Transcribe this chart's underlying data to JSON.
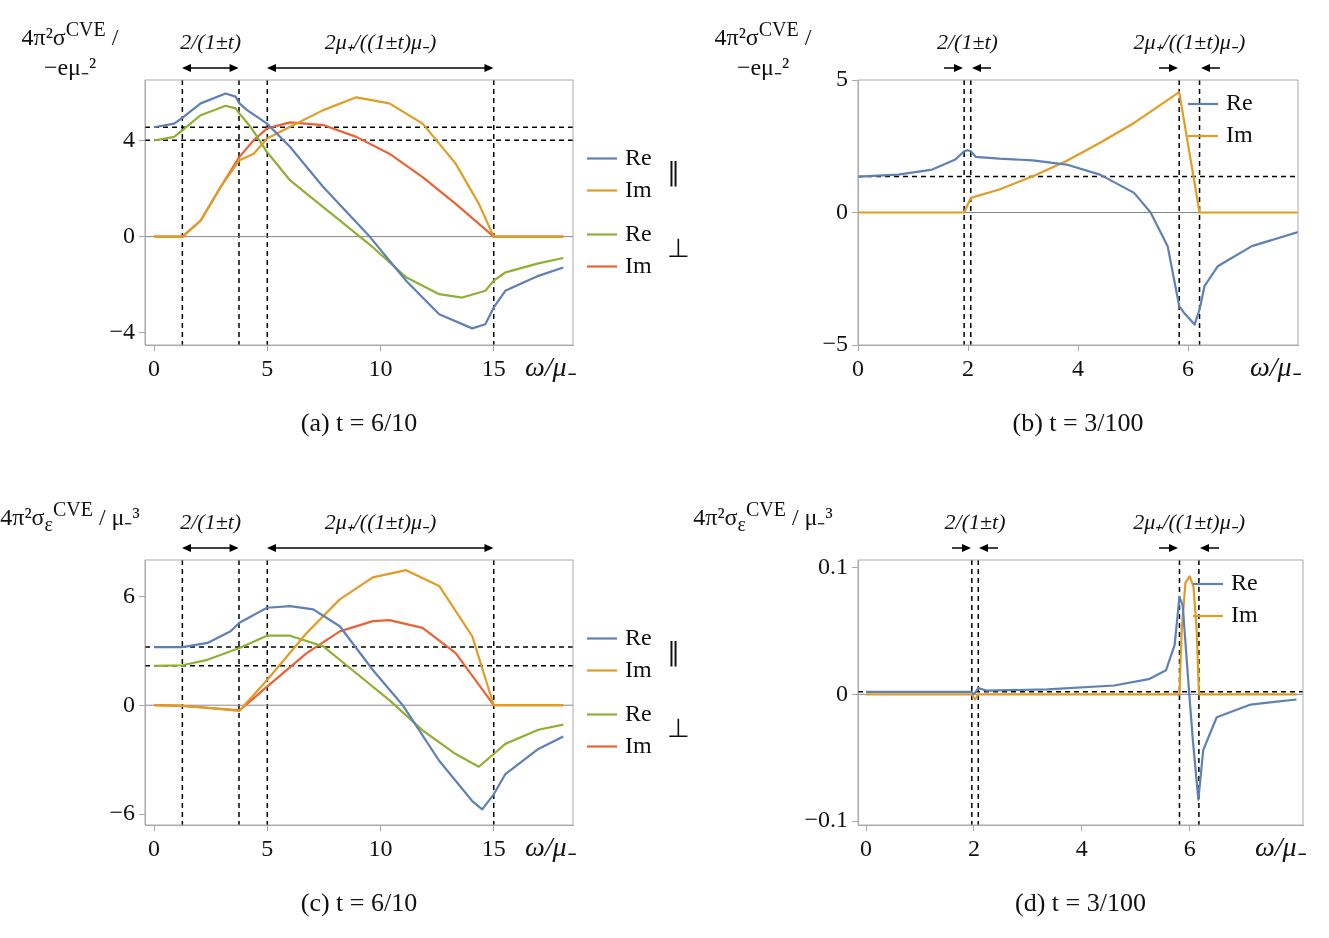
{
  "chart_data": [
    {
      "type": "line",
      "title": "(a) t = 6/10",
      "xlabel": "ω/μ₋",
      "ylabel": "4π²σ$^{CVE}$ / −eμ₋²",
      "legend": "right",
      "marker": "none",
      "xlim": [
        -0.4,
        18.5
      ],
      "ylim": [
        -4.5,
        6.5
      ],
      "xticks": [
        0,
        5,
        10,
        15
      ],
      "yticks": [
        -4,
        0,
        4
      ],
      "ref_lines": [
        {
          "axis": "x",
          "value": 1.25,
          "line_style": "dashed",
          "color": "#000000"
        },
        {
          "axis": "x",
          "value": 3.75,
          "line_style": "dashed",
          "color": "#000000"
        },
        {
          "axis": "x",
          "value": 5,
          "line_style": "dashed",
          "color": "#000000"
        },
        {
          "axis": "x",
          "value": 15,
          "line_style": "dashed",
          "color": "#000000"
        },
        {
          "axis": "y",
          "value": 4.54,
          "line_style": "dashed",
          "color": "#000000"
        },
        {
          "axis": "y",
          "value": 4,
          "line_style": "dashed",
          "color": "#000000"
        },
        {
          "axis": "y",
          "value": 0,
          "line_style": "solid",
          "color": "#888888"
        }
      ],
      "annotations": [
        "2/(1±t)",
        "2μ₊/((1±t)μ₋)",
        "∥",
        "⊥"
      ],
      "series": [
        {
          "name": "Re",
          "color": "#5e81b5",
          "x": [
            0,
            0.89,
            1.26,
            2.06,
            3.16,
            3.6,
            3.77,
            4.11,
            4.99,
            6.01,
            7.47,
            9.52,
            11.13,
            12.59,
            14.05,
            14.63,
            15,
            15.51,
            16.97,
            18.07
          ],
          "values": [
            4.54,
            4.69,
            4.94,
            5.53,
            5.94,
            5.81,
            5.53,
            5.25,
            4.69,
            3.72,
            2.06,
            0,
            -1.83,
            -3.22,
            -3.81,
            -3.64,
            -2.94,
            -2.25,
            -1.63,
            -1.28
          ]
        },
        {
          "name": "Im",
          "color": "#e19c24",
          "x": [
            0,
            1.26,
            2.06,
            2.94,
            3.77,
            4.4,
            4.99,
            6.01,
            7.47,
            8.93,
            10.39,
            11.86,
            13.32,
            14.34,
            15,
            18.07
          ],
          "values": [
            0,
            0,
            0.67,
            2.06,
            3.17,
            3.44,
            4.07,
            4.56,
            5.25,
            5.78,
            5.53,
            4.69,
            3.03,
            1.36,
            0,
            0
          ]
        },
        {
          "name": "Re",
          "color": "#8fb032",
          "x": [
            0,
            0.89,
            1.26,
            2.06,
            3.16,
            3.6,
            3.77,
            4.26,
            4.99,
            6.01,
            7.47,
            8.2,
            9.66,
            11.13,
            12.59,
            13.61,
            14.63,
            15,
            15.51,
            16.97,
            18.07
          ],
          "values": [
            3.99,
            4.14,
            4.42,
            5.04,
            5.43,
            5.32,
            5.11,
            4.56,
            3.51,
            2.33,
            1.22,
            0.67,
            -0.44,
            -1.69,
            -2.39,
            -2.53,
            -2.25,
            -1.83,
            -1.49,
            -1.11,
            -0.89
          ]
        },
        {
          "name": "Im",
          "color": "#eb6235",
          "x": [
            0,
            1.26,
            2.06,
            2.94,
            3.77,
            4.4,
            4.99,
            6.01,
            7.47,
            8.93,
            10.39,
            11.86,
            13.32,
            15,
            18.07
          ],
          "values": [
            0,
            0,
            0.67,
            2.06,
            3.31,
            4.0,
            4.49,
            4.74,
            4.63,
            4.14,
            3.44,
            2.47,
            1.36,
            0,
            0
          ]
        }
      ]
    },
    {
      "type": "line",
      "title": "(b) t = 3/100",
      "xlabel": "ω/μ₋",
      "ylabel": "4π²σ$^{CVE}$ / −eμ₋²",
      "legend": "top right",
      "marker": "none",
      "xlim": [
        0,
        8
      ],
      "ylim": [
        -5,
        5
      ],
      "xticks": [
        0,
        2,
        4,
        6
      ],
      "yticks": [
        -5,
        0,
        5
      ],
      "ref_lines": [
        {
          "axis": "x",
          "value": 1.93,
          "line_style": "dashed",
          "color": "#000000"
        },
        {
          "axis": "x",
          "value": 2.05,
          "line_style": "dashed",
          "color": "#000000"
        },
        {
          "axis": "x",
          "value": 5.84,
          "line_style": "dashed",
          "color": "#000000"
        },
        {
          "axis": "x",
          "value": 6.21,
          "line_style": "dashed",
          "color": "#000000"
        },
        {
          "axis": "y",
          "value": 1.36,
          "line_style": "dashed",
          "color": "#000000"
        },
        {
          "axis": "y",
          "value": 0,
          "line_style": "solid",
          "color": "#888888"
        }
      ],
      "annotations": [
        "2/(1±t)",
        "2μ₊/((1±t)μ₋)"
      ],
      "series": [
        {
          "name": "Re",
          "color": "#5e81b5",
          "x": [
            0,
            0.73,
            1.35,
            1.77,
            1.93,
            1.99,
            2.05,
            2.14,
            2.57,
            3.18,
            3.79,
            4.4,
            5.02,
            5.32,
            5.63,
            5.84,
            5.93,
            6.12,
            6.21,
            6.3,
            6.54,
            7.16,
            8
          ],
          "values": [
            1.35,
            1.43,
            1.62,
            2.0,
            2.31,
            2.35,
            2.31,
            2.1,
            2.03,
            1.97,
            1.81,
            1.43,
            0.74,
            0,
            -1.27,
            -3.53,
            -3.79,
            -4.23,
            -3.66,
            -2.78,
            -2.03,
            -1.27,
            -0.74
          ]
        },
        {
          "name": "Im",
          "color": "#e19c24",
          "x": [
            0,
            1.93,
            2.05,
            2.57,
            3.18,
            3.79,
            4.4,
            5.02,
            5.84,
            6.21,
            8
          ],
          "values": [
            0,
            0,
            0.55,
            0.87,
            1.37,
            1.94,
            2.63,
            3.38,
            4.54,
            0,
            0
          ]
        }
      ]
    },
    {
      "type": "line",
      "title": "(c) t = 6/10",
      "xlabel": "ω/μ₋",
      "ylabel": "4π²σ$_{ε}$$^{CVE}$ / μ₋³",
      "legend": "right",
      "marker": "none",
      "xlim": [
        -0.4,
        18.5
      ],
      "ylim": [
        -6.6,
        8
      ],
      "xticks": [
        0,
        5,
        10,
        15
      ],
      "yticks": [
        -6,
        0,
        6
      ],
      "ref_lines": [
        {
          "axis": "x",
          "value": 1.25,
          "line_style": "dashed",
          "color": "#000000"
        },
        {
          "axis": "x",
          "value": 3.75,
          "line_style": "dashed",
          "color": "#000000"
        },
        {
          "axis": "x",
          "value": 5,
          "line_style": "dashed",
          "color": "#000000"
        },
        {
          "axis": "x",
          "value": 15,
          "line_style": "dashed",
          "color": "#000000"
        },
        {
          "axis": "y",
          "value": 3.2,
          "line_style": "dashed",
          "color": "#000000"
        },
        {
          "axis": "y",
          "value": 2.17,
          "line_style": "dashed",
          "color": "#000000"
        },
        {
          "axis": "y",
          "value": 0,
          "line_style": "solid",
          "color": "#888888"
        }
      ],
      "annotations": [
        "2/(1±t)",
        "2μ₊/((1±t)μ₋)",
        "∥",
        "⊥"
      ],
      "series": [
        {
          "name": "Re",
          "color": "#5e81b5",
          "x": [
            0,
            1.26,
            2.36,
            3.38,
            3.77,
            4.99,
            6.01,
            7.03,
            8.2,
            9.66,
            10.98,
            12.59,
            14.05,
            14.49,
            15,
            15.51,
            16.97,
            18.07
          ],
          "values": [
            3.2,
            3.2,
            3.43,
            4.07,
            4.54,
            5.37,
            5.46,
            5.28,
            4.35,
            1.94,
            0,
            -3.06,
            -5.28,
            -5.74,
            -4.91,
            -3.8,
            -2.41,
            -1.72
          ]
        },
        {
          "name": "Im",
          "color": "#e19c24",
          "x": [
            0,
            1.26,
            2.36,
            3.77,
            4.99,
            6.74,
            8.2,
            9.66,
            11.13,
            12.59,
            14.05,
            15,
            18.07
          ],
          "values": [
            0,
            -0.04,
            -0.15,
            -0.31,
            1.39,
            3.98,
            5.83,
            7.04,
            7.44,
            6.57,
            3.8,
            0,
            0
          ]
        },
        {
          "name": "Re",
          "color": "#8fb032",
          "x": [
            0,
            1.26,
            2.36,
            3.77,
            4.99,
            6.01,
            7.47,
            8.93,
            10.39,
            11.86,
            13.32,
            14.34,
            15,
            15.51,
            16.97,
            18.07
          ],
          "values": [
            2.17,
            2.2,
            2.5,
            3.15,
            3.83,
            3.83,
            3.24,
            1.76,
            0.28,
            -1.39,
            -2.69,
            -3.39,
            -2.69,
            -2.13,
            -1.35,
            -1.07
          ]
        },
        {
          "name": "Im",
          "color": "#eb6235",
          "x": [
            0,
            1.26,
            2.36,
            3.77,
            4.99,
            6.74,
            8.2,
            9.66,
            10.39,
            11.86,
            13.32,
            15,
            18.07
          ],
          "values": [
            0,
            -0.04,
            -0.14,
            -0.29,
            1.02,
            2.87,
            4.07,
            4.63,
            4.69,
            4.26,
            2.87,
            0,
            0
          ]
        }
      ]
    },
    {
      "type": "line",
      "title": "(d) t = 3/100",
      "xlabel": "ω/μ₋",
      "ylabel": "4π²σ$_{ε}$$^{CVE}$ / μ₋³",
      "legend": "top right",
      "marker": "none",
      "xlim": [
        -0.15,
        8.1
      ],
      "ylim": [
        -0.103,
        0.106
      ],
      "xticks": [
        0,
        2,
        4,
        6
      ],
      "yticks": [
        -0.1,
        0,
        0.1
      ],
      "ref_lines": [
        {
          "axis": "x",
          "value": 1.96,
          "line_style": "dashed",
          "color": "#000000"
        },
        {
          "axis": "x",
          "value": 2.08,
          "line_style": "dashed",
          "color": "#000000"
        },
        {
          "axis": "x",
          "value": 5.81,
          "line_style": "dashed",
          "color": "#000000"
        },
        {
          "axis": "x",
          "value": 6.17,
          "line_style": "dashed",
          "color": "#000000"
        },
        {
          "axis": "y",
          "value": 0.002,
          "line_style": "dashed",
          "color": "#000000"
        },
        {
          "axis": "y",
          "value": 0,
          "line_style": "solid",
          "color": "#888888"
        }
      ],
      "annotations": [
        "2/(1±t)",
        "2μ₊/((1±t)μ₋)"
      ],
      "series": [
        {
          "name": "Re",
          "color": "#5e81b5",
          "x": [
            0,
            1.96,
            2.0,
            2.08,
            2.23,
            3.36,
            4.6,
            5.24,
            5.56,
            5.72,
            5.81,
            5.87,
            5.99,
            6.06,
            6.16,
            6.25,
            6.5,
            7.13,
            7.98
          ],
          "values": [
            0.002,
            0.002,
            0,
            0.005,
            0.003,
            0.004,
            0.007,
            0.012,
            0.019,
            0.039,
            0.077,
            0.07,
            0.001,
            -0.037,
            -0.083,
            -0.044,
            -0.018,
            -0.008,
            -0.004
          ]
        },
        {
          "name": "Im",
          "color": "#e19c24",
          "x": [
            0,
            1.96,
            2.02,
            2.08,
            5.81,
            5.85,
            5.92,
            6.0,
            6.07,
            6.13,
            6.17,
            7.98
          ],
          "values": [
            0,
            0,
            -0.004,
            0,
            0,
            0.05,
            0.088,
            0.093,
            0.085,
            0.05,
            0,
            0
          ]
        }
      ]
    }
  ]
}
